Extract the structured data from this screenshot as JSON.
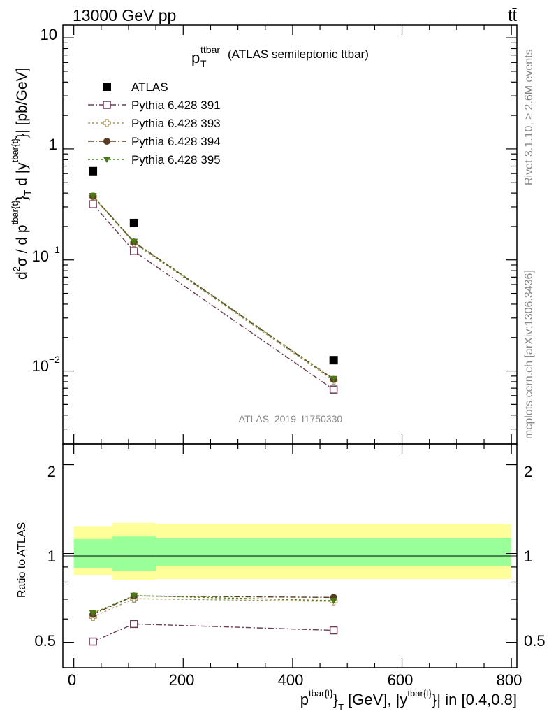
{
  "header": {
    "energy": "13000 GeV pp",
    "process": "tt̄"
  },
  "side_text": {
    "rivet": "Rivet 3.1.10, ≥ 2.6M events",
    "mcplots": "mcplots.cern.ch [arXiv:1306.3436]"
  },
  "watermark": "ATLAS_2019_I1750330",
  "title": {
    "main": "p",
    "sup": "ttbar",
    "sub": "T",
    "rest": "(ATLAS semileptonic ttbar)"
  },
  "top_ylabel": {
    "a": "d",
    "b": "2",
    "c": "σ / d p",
    "d": "tbar{t}",
    "e": "}",
    "f": "T",
    "g": " d |y",
    "h": "tbar{t}",
    "i": "}| [pb/GeV]"
  },
  "bottom_ylabel": "Ratio to ATLAS",
  "xlabel": {
    "a": "p",
    "b": "tbar{t}",
    "c": "}",
    "d": "T",
    "e": " [GeV], |y",
    "f": "tbar{t}",
    "g": "}| in [0.4,0.8]"
  },
  "top_ticks": [
    {
      "value": 10,
      "base": "10",
      "exp": ""
    },
    {
      "value": 1,
      "base": "1",
      "exp": ""
    },
    {
      "value": 0.1,
      "base": "10",
      "exp": "−1"
    },
    {
      "value": 0.01,
      "base": "10",
      "exp": "−2"
    }
  ],
  "bottom_ticks": [
    "0.5",
    "1",
    "2"
  ],
  "x_ticks": [
    "0",
    "200",
    "400",
    "600",
    "800"
  ],
  "colors": {
    "data": "#000000",
    "p391": "#6b3a55",
    "p393": "#a89060",
    "p394": "#5a3c22",
    "p395": "#4a7a14",
    "band_inner": "#99ff99",
    "band_outer": "#ffff99"
  },
  "chart_data": {
    "type": "scatter",
    "x_range": [
      -20,
      810
    ],
    "top_y_range": [
      0.0022,
      13
    ],
    "top_y_scale": "log",
    "bottom_y_range": [
      0.41,
      2.35
    ],
    "bottom_y_scale": "log",
    "legend_position": "top-left",
    "bins": [
      [
        0,
        70
      ],
      [
        70,
        150
      ],
      [
        150,
        800
      ]
    ],
    "x": [
      35,
      110,
      475
    ],
    "atlas": {
      "name": "ATLAS",
      "values": [
        0.63,
        0.215,
        0.0125
      ]
    },
    "band_inner": [
      [
        0.893,
        1.12
      ],
      [
        0.875,
        1.142
      ],
      [
        0.91,
        1.13
      ]
    ],
    "band_outer": [
      [
        0.845,
        1.238
      ],
      [
        0.815,
        1.27
      ],
      [
        0.82,
        1.255
      ]
    ],
    "series": [
      {
        "name": "Pythia 6.428 391",
        "values": [
          0.317,
          0.12,
          0.0068
        ],
        "ratio": [
          0.503,
          0.577,
          0.549
        ],
        "marker": "open-square",
        "color": "#6b3a55",
        "dash": "8 3 2 3"
      },
      {
        "name": "Pythia 6.428 393",
        "values": [
          0.372,
          0.142,
          0.0082
        ],
        "ratio": [
          0.61,
          0.703,
          0.688
        ],
        "marker": "open-cross",
        "color": "#a89060",
        "dash": "3 3"
      },
      {
        "name": "Pythia 6.428 394",
        "values": [
          0.375,
          0.145,
          0.0084
        ],
        "ratio": [
          0.622,
          0.718,
          0.71
        ],
        "marker": "filled-circle",
        "color": "#5a3c22",
        "dash": "8 3 2 3"
      },
      {
        "name": "Pythia 6.428 395",
        "values": [
          0.378,
          0.146,
          0.0085
        ],
        "ratio": [
          0.628,
          0.72,
          0.692
        ],
        "marker": "filled-triangle-down",
        "color": "#4a7a14",
        "dash": "3 3"
      }
    ]
  }
}
